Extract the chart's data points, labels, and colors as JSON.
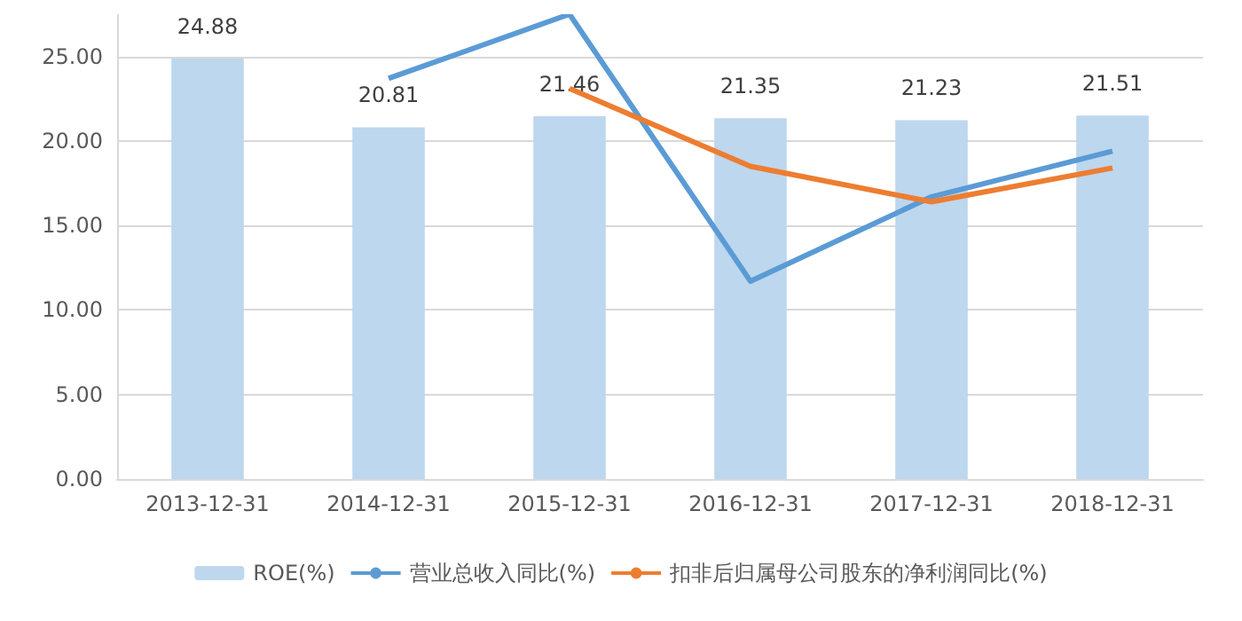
{
  "chart_data": {
    "type": "bar",
    "categories": [
      "2013-12-31",
      "2014-12-31",
      "2015-12-31",
      "2016-12-31",
      "2017-12-31",
      "2018-12-31"
    ],
    "series": [
      {
        "name": "ROE(%)",
        "color": "#bdd7ee",
        "values": [
          24.88,
          20.81,
          21.46,
          21.35,
          21.23,
          21.51
        ],
        "value_labels": [
          "24.88",
          "20.81",
          "21.46",
          "21.35",
          "21.23",
          "21.51"
        ]
      },
      {
        "name": "营业总收入同比(%)",
        "type": "line",
        "color": "#5b9bd5",
        "values": [
          null,
          23.7,
          27.5,
          11.7,
          16.7,
          19.4
        ]
      },
      {
        "name": "扣非后归属母公司股东的净利润同比(%)",
        "type": "line",
        "color": "#ed7d31",
        "values": [
          null,
          null,
          23.1,
          18.5,
          16.4,
          18.4
        ]
      }
    ],
    "ylim": [
      0,
      27.5
    ],
    "yticks": [
      {
        "value": 0,
        "label": "0.00"
      },
      {
        "value": 5,
        "label": "5.00"
      },
      {
        "value": 10,
        "label": "10.00"
      },
      {
        "value": 15,
        "label": "15.00"
      },
      {
        "value": 20,
        "label": "20.00"
      },
      {
        "value": 25,
        "label": "25.00"
      }
    ],
    "grid": "y",
    "legend": "bottom",
    "marker": "none"
  }
}
